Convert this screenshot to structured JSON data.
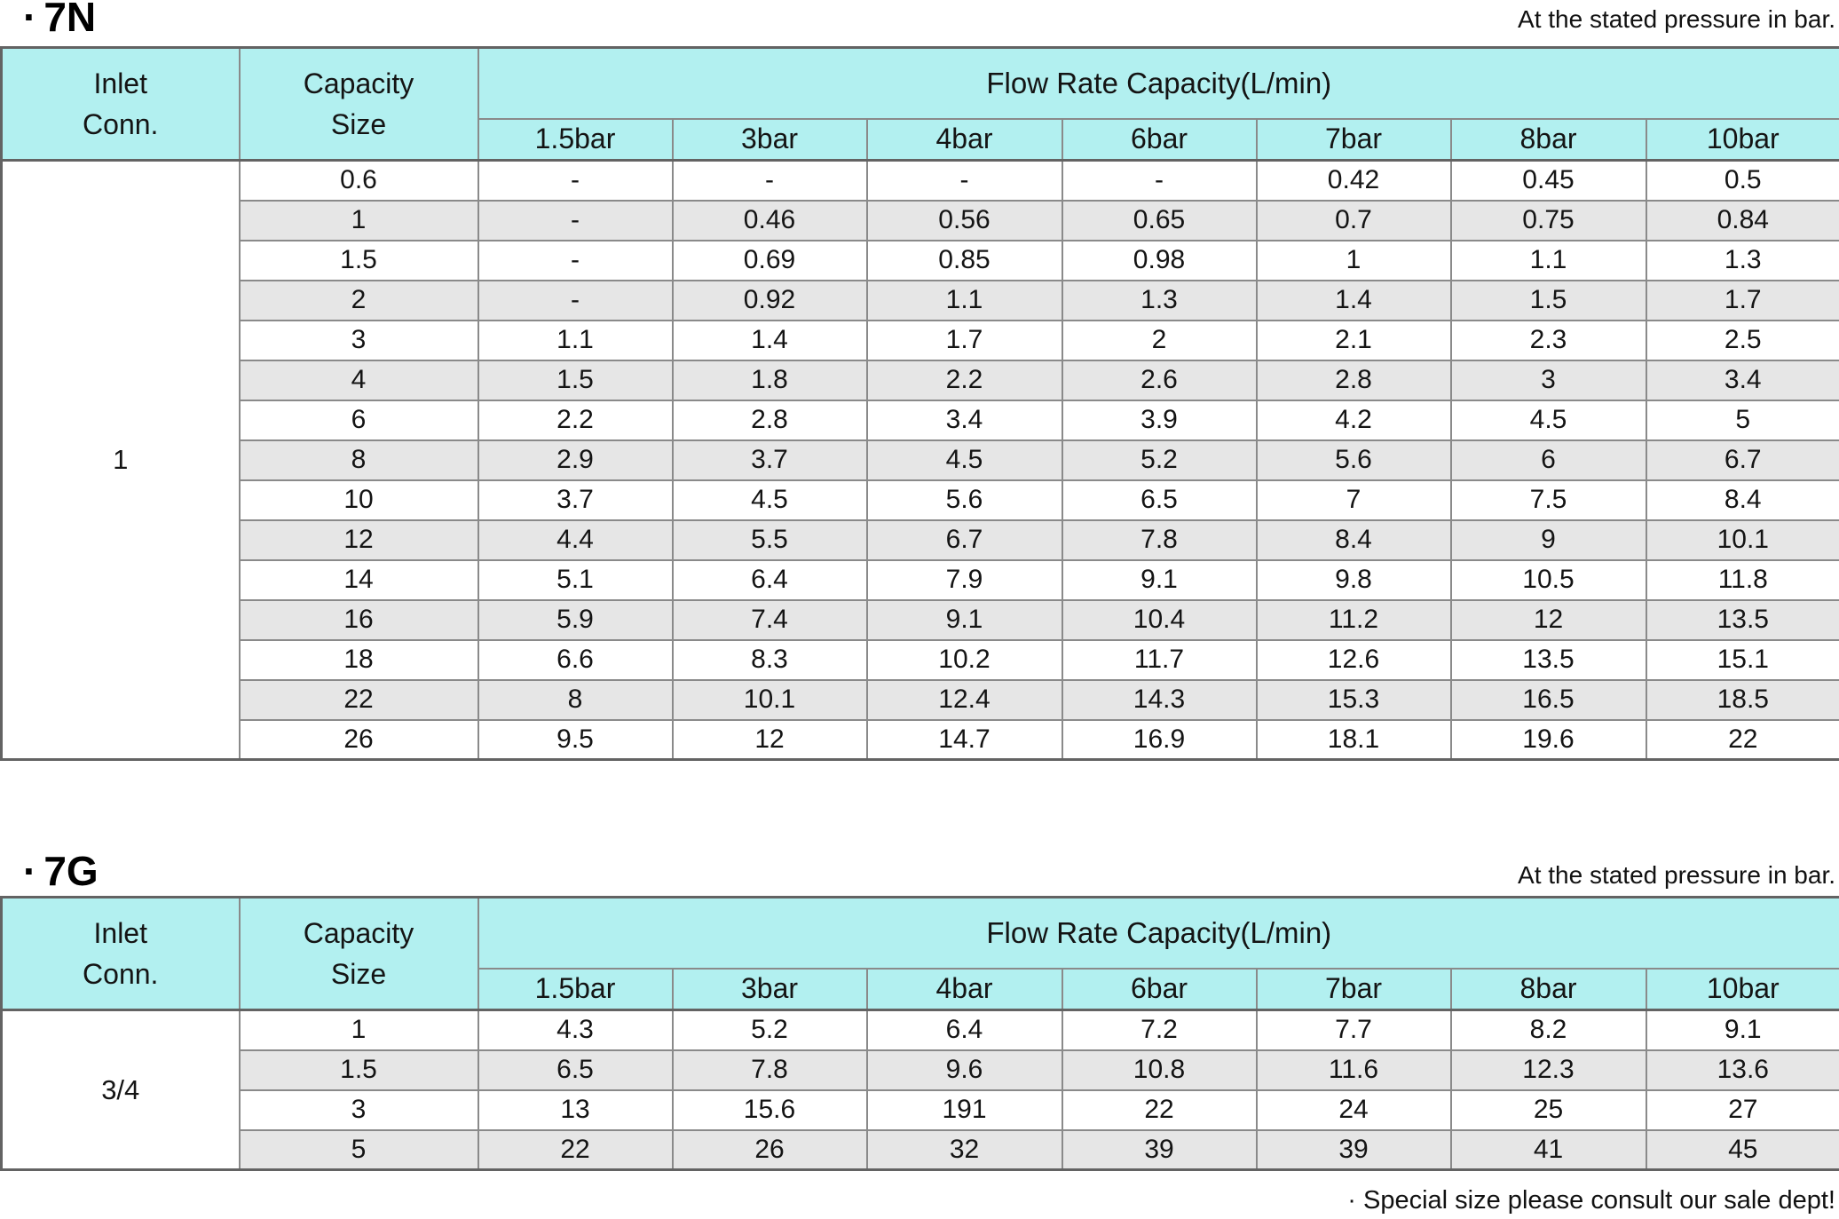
{
  "notes": {
    "pressure_7n": "At the stated pressure in bar.",
    "pressure_7g": "At the stated pressure in bar.",
    "footer": "· Special size please consult our sale dept!"
  },
  "table_7n": {
    "bullet": "·",
    "title": "7N",
    "header": {
      "inlet_conn": "Inlet\nConn.",
      "capacity_size": "Capacity\nSize",
      "flow_rate_title": "Flow Rate Capacity(L/min)",
      "bars": [
        "1.5bar",
        "3bar",
        "4bar",
        "6bar",
        "7bar",
        "8bar",
        "10bar"
      ]
    },
    "inlet_conn_value": "1",
    "rows": [
      {
        "size": "0.6",
        "values": [
          "-",
          "-",
          "-",
          "-",
          "0.42",
          "0.45",
          "0.5"
        ]
      },
      {
        "size": "1",
        "values": [
          "-",
          "0.46",
          "0.56",
          "0.65",
          "0.7",
          "0.75",
          "0.84"
        ]
      },
      {
        "size": "1.5",
        "values": [
          "-",
          "0.69",
          "0.85",
          "0.98",
          "1",
          "1.1",
          "1.3"
        ]
      },
      {
        "size": "2",
        "values": [
          "-",
          "0.92",
          "1.1",
          "1.3",
          "1.4",
          "1.5",
          "1.7"
        ]
      },
      {
        "size": "3",
        "values": [
          "1.1",
          "1.4",
          "1.7",
          "2",
          "2.1",
          "2.3",
          "2.5"
        ]
      },
      {
        "size": "4",
        "values": [
          "1.5",
          "1.8",
          "2.2",
          "2.6",
          "2.8",
          "3",
          "3.4"
        ]
      },
      {
        "size": "6",
        "values": [
          "2.2",
          "2.8",
          "3.4",
          "3.9",
          "4.2",
          "4.5",
          "5"
        ]
      },
      {
        "size": "8",
        "values": [
          "2.9",
          "3.7",
          "4.5",
          "5.2",
          "5.6",
          "6",
          "6.7"
        ]
      },
      {
        "size": "10",
        "values": [
          "3.7",
          "4.5",
          "5.6",
          "6.5",
          "7",
          "7.5",
          "8.4"
        ]
      },
      {
        "size": "12",
        "values": [
          "4.4",
          "5.5",
          "6.7",
          "7.8",
          "8.4",
          "9",
          "10.1"
        ]
      },
      {
        "size": "14",
        "values": [
          "5.1",
          "6.4",
          "7.9",
          "9.1",
          "9.8",
          "10.5",
          "11.8"
        ]
      },
      {
        "size": "16",
        "values": [
          "5.9",
          "7.4",
          "9.1",
          "10.4",
          "11.2",
          "12",
          "13.5"
        ]
      },
      {
        "size": "18",
        "values": [
          "6.6",
          "8.3",
          "10.2",
          "11.7",
          "12.6",
          "13.5",
          "15.1"
        ]
      },
      {
        "size": "22",
        "values": [
          "8",
          "10.1",
          "12.4",
          "14.3",
          "15.3",
          "16.5",
          "18.5"
        ]
      },
      {
        "size": "26",
        "values": [
          "9.5",
          "12",
          "14.7",
          "16.9",
          "18.1",
          "19.6",
          "22"
        ]
      }
    ]
  },
  "table_7g": {
    "bullet": "·",
    "title": "7G",
    "header": {
      "inlet_conn": "Inlet\nConn.",
      "capacity_size": "Capacity\nSize",
      "flow_rate_title": "Flow Rate Capacity(L/min)",
      "bars": [
        "1.5bar",
        "3bar",
        "4bar",
        "6bar",
        "7bar",
        "8bar",
        "10bar"
      ]
    },
    "inlet_conn_value": "3/4",
    "rows": [
      {
        "size": "1",
        "values": [
          "4.3",
          "5.2",
          "6.4",
          "7.2",
          "7.7",
          "8.2",
          "9.1"
        ]
      },
      {
        "size": "1.5",
        "values": [
          "6.5",
          "7.8",
          "9.6",
          "10.8",
          "11.6",
          "12.3",
          "13.6"
        ]
      },
      {
        "size": "3",
        "values": [
          "13",
          "15.6",
          "191",
          "22",
          "24",
          "25",
          "27"
        ]
      },
      {
        "size": "5",
        "values": [
          "22",
          "26",
          "32",
          "39",
          "39",
          "41",
          "45"
        ]
      }
    ]
  }
}
